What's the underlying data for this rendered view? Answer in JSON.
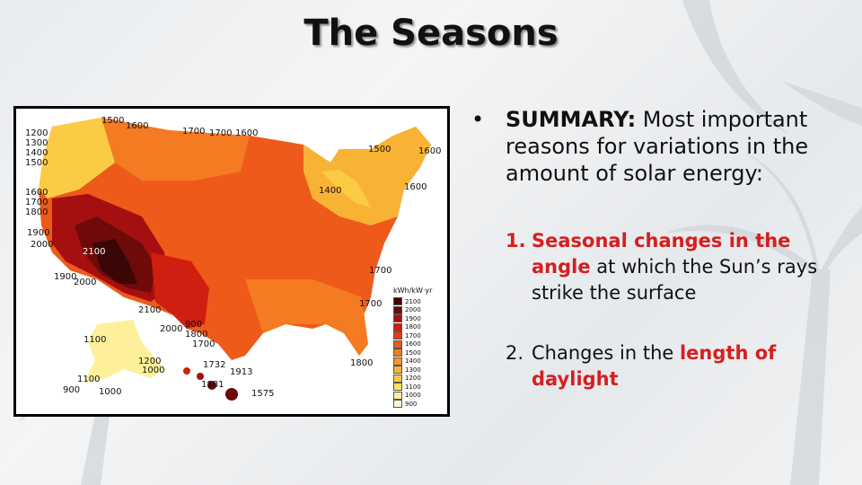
{
  "slide": {
    "title": "The Seasons",
    "summary": {
      "bullet": "•",
      "label": "SUMMARY:",
      "text": " Most important reasons for variations in the amount of solar energy:"
    },
    "items": [
      {
        "number": "1.",
        "highlight": "Seasonal changes in the angle",
        "rest": " at which the Sun’s rays strike the surface"
      },
      {
        "number": "2.",
        "prefix": "Changes in the ",
        "highlight": "length of daylight"
      }
    ]
  },
  "map": {
    "legend_title": "kWh/kW·yr",
    "legend_values": [
      "2100",
      "2000",
      "1900",
      "1800",
      "1700",
      "1600",
      "1500",
      "1400",
      "1300",
      "1200",
      "1100",
      "1000",
      "900"
    ],
    "legend_colors": [
      "#3a0606",
      "#6e0a0a",
      "#a50f0f",
      "#cf1f10",
      "#e53b12",
      "#ee5a1a",
      "#f47b22",
      "#f7982a",
      "#f9b334",
      "#fbcb44",
      "#fde263",
      "#fef09a",
      "#fff8d0"
    ],
    "labels": [
      "1500",
      "1600",
      "1200",
      "1300",
      "1400",
      "1500",
      "1700",
      "1700",
      "1600",
      "1500",
      "1600",
      "1600",
      "1700",
      "1800",
      "1400",
      "1600",
      "1900",
      "2000",
      "2100",
      "1900",
      "2000",
      "1700",
      "2100",
      "1700",
      "900",
      "1800",
      "1700",
      "2000",
      "1100",
      "1200",
      "1000",
      "1100",
      "900",
      "1000",
      "1732",
      "1913",
      "1881",
      "1575",
      "1800"
    ]
  },
  "colors": {
    "accent_red": "#d51f1f",
    "text": "#111111"
  }
}
